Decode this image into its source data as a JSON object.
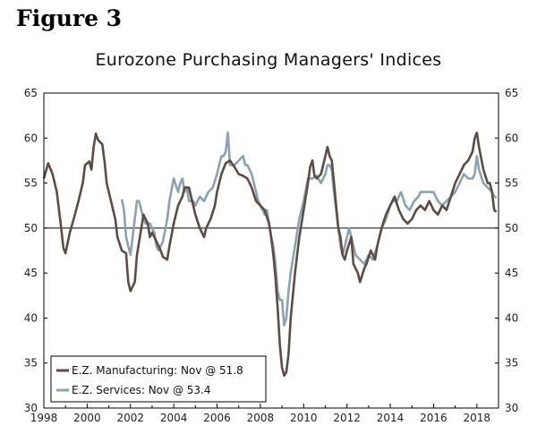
{
  "figure_label": "Figure 3",
  "chart_data": {
    "type": "line",
    "title": "Eurozone Purchasing Managers' Indices",
    "xlim": [
      1998,
      2019
    ],
    "ylim": [
      30,
      65
    ],
    "yticks": [
      30,
      35,
      40,
      45,
      50,
      55,
      60,
      65
    ],
    "xticks": [
      1998,
      2000,
      2002,
      2004,
      2006,
      2008,
      2010,
      2012,
      2014,
      2016,
      2018
    ],
    "x_tick_labels": [
      "1998",
      "2000",
      "2002",
      "2004",
      "2006",
      "2008",
      "2010",
      "2012",
      "2014",
      "2016",
      "2018"
    ],
    "y_tick_labels": [
      "30",
      "35",
      "40",
      "45",
      "50",
      "55",
      "60",
      "65"
    ],
    "reference_line": 50,
    "legend_position": "bottom-left",
    "series": [
      {
        "name": "E.Z. Manufacturing: Nov @ 51.8",
        "color": "#5e4c43",
        "points": [
          [
            1998.0,
            55.5
          ],
          [
            1998.2,
            57.2
          ],
          [
            1998.4,
            56
          ],
          [
            1998.6,
            54
          ],
          [
            1998.8,
            50
          ],
          [
            1998.9,
            47.8
          ],
          [
            1999.0,
            47.2
          ],
          [
            1999.2,
            49.5
          ],
          [
            1999.4,
            51.2
          ],
          [
            1999.6,
            53
          ],
          [
            1999.8,
            55
          ],
          [
            1999.9,
            57
          ],
          [
            2000.1,
            57.4
          ],
          [
            2000.2,
            56.5
          ],
          [
            2000.3,
            59
          ],
          [
            2000.4,
            60.5
          ],
          [
            2000.5,
            59.8
          ],
          [
            2000.7,
            59.3
          ],
          [
            2000.8,
            57.5
          ],
          [
            2000.9,
            55
          ],
          [
            2001.1,
            53
          ],
          [
            2001.3,
            51
          ],
          [
            2001.4,
            49
          ],
          [
            2001.6,
            47.5
          ],
          [
            2001.8,
            47.2
          ],
          [
            2001.9,
            44
          ],
          [
            2002.0,
            43
          ],
          [
            2002.2,
            44
          ],
          [
            2002.3,
            47
          ],
          [
            2002.5,
            50
          ],
          [
            2002.6,
            51.5
          ],
          [
            2002.8,
            50.5
          ],
          [
            2002.9,
            49
          ],
          [
            2003.0,
            49.5
          ],
          [
            2003.2,
            48.5
          ],
          [
            2003.4,
            47.5
          ],
          [
            2003.5,
            46.8
          ],
          [
            2003.7,
            46.5
          ],
          [
            2003.8,
            48
          ],
          [
            2004.0,
            50.5
          ],
          [
            2004.2,
            52.5
          ],
          [
            2004.4,
            53.5
          ],
          [
            2004.5,
            54.5
          ],
          [
            2004.7,
            54.5
          ],
          [
            2004.9,
            52.5
          ],
          [
            2005.0,
            51.5
          ],
          [
            2005.2,
            50
          ],
          [
            2005.4,
            49
          ],
          [
            2005.5,
            50
          ],
          [
            2005.7,
            51
          ],
          [
            2005.9,
            52.5
          ],
          [
            2006.0,
            54
          ],
          [
            2006.2,
            56
          ],
          [
            2006.4,
            57.2
          ],
          [
            2006.6,
            57.5
          ],
          [
            2006.8,
            56.8
          ],
          [
            2007.0,
            56
          ],
          [
            2007.2,
            55.8
          ],
          [
            2007.4,
            55.5
          ],
          [
            2007.6,
            54.5
          ],
          [
            2007.8,
            53
          ],
          [
            2008.0,
            52.5
          ],
          [
            2008.2,
            52
          ],
          [
            2008.4,
            50.5
          ],
          [
            2008.5,
            49
          ],
          [
            2008.6,
            47
          ],
          [
            2008.7,
            44.5
          ],
          [
            2008.8,
            41
          ],
          [
            2008.9,
            37
          ],
          [
            2009.0,
            34.5
          ],
          [
            2009.1,
            33.6
          ],
          [
            2009.2,
            34
          ],
          [
            2009.3,
            36
          ],
          [
            2009.4,
            40
          ],
          [
            2009.6,
            45
          ],
          [
            2009.8,
            49
          ],
          [
            2010.0,
            52
          ],
          [
            2010.2,
            55
          ],
          [
            2010.3,
            56.8
          ],
          [
            2010.4,
            57.5
          ],
          [
            2010.5,
            55.8
          ],
          [
            2010.6,
            55.5
          ],
          [
            2010.8,
            56
          ],
          [
            2010.9,
            57
          ],
          [
            2011.0,
            58
          ],
          [
            2011.1,
            59
          ],
          [
            2011.2,
            58
          ],
          [
            2011.3,
            57.5
          ],
          [
            2011.4,
            55
          ],
          [
            2011.5,
            52.5
          ],
          [
            2011.6,
            50
          ],
          [
            2011.7,
            49
          ],
          [
            2011.8,
            47
          ],
          [
            2011.9,
            46.5
          ],
          [
            2012.0,
            47.5
          ],
          [
            2012.2,
            49
          ],
          [
            2012.3,
            46
          ],
          [
            2012.5,
            45
          ],
          [
            2012.6,
            44
          ],
          [
            2012.8,
            45.5
          ],
          [
            2012.9,
            46
          ],
          [
            2013.1,
            47.5
          ],
          [
            2013.3,
            46.5
          ],
          [
            2013.4,
            48
          ],
          [
            2013.6,
            50
          ],
          [
            2013.8,
            51.5
          ],
          [
            2014.0,
            52.5
          ],
          [
            2014.2,
            53.5
          ],
          [
            2014.4,
            52
          ],
          [
            2014.6,
            51
          ],
          [
            2014.8,
            50.5
          ],
          [
            2015.0,
            51
          ],
          [
            2015.2,
            52
          ],
          [
            2015.4,
            52.5
          ],
          [
            2015.6,
            52
          ],
          [
            2015.8,
            53
          ],
          [
            2016.0,
            52
          ],
          [
            2016.2,
            51.5
          ],
          [
            2016.4,
            52.5
          ],
          [
            2016.6,
            52
          ],
          [
            2016.8,
            53.5
          ],
          [
            2017.0,
            55
          ],
          [
            2017.2,
            56
          ],
          [
            2017.4,
            57
          ],
          [
            2017.6,
            57.5
          ],
          [
            2017.8,
            58.5
          ],
          [
            2017.9,
            60
          ],
          [
            2018.0,
            60.6
          ],
          [
            2018.1,
            59
          ],
          [
            2018.3,
            56.5
          ],
          [
            2018.5,
            55
          ],
          [
            2018.6,
            55
          ],
          [
            2018.7,
            54
          ],
          [
            2018.8,
            52
          ],
          [
            2018.9,
            51.8
          ]
        ]
      },
      {
        "name": "E.Z. Services: Nov @ 53.4",
        "color": "#8aa2b4",
        "points": [
          [
            2001.6,
            53.2
          ],
          [
            2001.7,
            52
          ],
          [
            2001.8,
            49
          ],
          [
            2002.0,
            47
          ],
          [
            2002.1,
            49
          ],
          [
            2002.2,
            51
          ],
          [
            2002.3,
            53
          ],
          [
            2002.4,
            53
          ],
          [
            2002.5,
            52
          ],
          [
            2002.6,
            51
          ],
          [
            2002.7,
            50.5
          ],
          [
            2002.9,
            50.5
          ],
          [
            2003.1,
            49.5
          ],
          [
            2003.2,
            48
          ],
          [
            2003.3,
            47.5
          ],
          [
            2003.5,
            48.5
          ],
          [
            2003.7,
            51
          ],
          [
            2003.8,
            53
          ],
          [
            2004.0,
            55.5
          ],
          [
            2004.2,
            54
          ],
          [
            2004.3,
            55
          ],
          [
            2004.4,
            55.5
          ],
          [
            2004.5,
            54
          ],
          [
            2004.6,
            54.5
          ],
          [
            2004.7,
            53
          ],
          [
            2004.9,
            53
          ],
          [
            2005.0,
            52.5
          ],
          [
            2005.2,
            53.5
          ],
          [
            2005.4,
            53
          ],
          [
            2005.6,
            54
          ],
          [
            2005.8,
            54.5
          ],
          [
            2006.0,
            56
          ],
          [
            2006.2,
            58
          ],
          [
            2006.3,
            58
          ],
          [
            2006.4,
            58.5
          ],
          [
            2006.5,
            60.6
          ],
          [
            2006.6,
            57
          ],
          [
            2006.8,
            57
          ],
          [
            2007.0,
            57.5
          ],
          [
            2007.2,
            58
          ],
          [
            2007.3,
            57
          ],
          [
            2007.4,
            57
          ],
          [
            2007.6,
            56
          ],
          [
            2007.8,
            54
          ],
          [
            2007.9,
            53
          ],
          [
            2008.0,
            52.5
          ],
          [
            2008.2,
            51.5
          ],
          [
            2008.3,
            52
          ],
          [
            2008.4,
            50.5
          ],
          [
            2008.5,
            49
          ],
          [
            2008.6,
            48
          ],
          [
            2008.7,
            46
          ],
          [
            2008.8,
            43
          ],
          [
            2008.9,
            42
          ],
          [
            2009.0,
            42
          ],
          [
            2009.1,
            39.2
          ],
          [
            2009.2,
            40
          ],
          [
            2009.3,
            43
          ],
          [
            2009.4,
            45
          ],
          [
            2009.6,
            48
          ],
          [
            2009.8,
            51
          ],
          [
            2010.0,
            53
          ],
          [
            2010.2,
            55.5
          ],
          [
            2010.4,
            55.5
          ],
          [
            2010.6,
            55.8
          ],
          [
            2010.8,
            55
          ],
          [
            2010.9,
            55.5
          ],
          [
            2011.0,
            56
          ],
          [
            2011.1,
            57
          ],
          [
            2011.2,
            57
          ],
          [
            2011.3,
            56.5
          ],
          [
            2011.4,
            54
          ],
          [
            2011.5,
            52
          ],
          [
            2011.6,
            50
          ],
          [
            2011.7,
            48
          ],
          [
            2011.8,
            47
          ],
          [
            2012.0,
            49
          ],
          [
            2012.1,
            50
          ],
          [
            2012.3,
            48
          ],
          [
            2012.4,
            47
          ],
          [
            2012.6,
            46.5
          ],
          [
            2012.8,
            46
          ],
          [
            2013.0,
            47
          ],
          [
            2013.2,
            46.5
          ],
          [
            2013.4,
            48
          ],
          [
            2013.6,
            50
          ],
          [
            2013.8,
            51
          ],
          [
            2014.0,
            52.5
          ],
          [
            2014.1,
            53
          ],
          [
            2014.3,
            53
          ],
          [
            2014.5,
            54
          ],
          [
            2014.7,
            52.5
          ],
          [
            2014.9,
            52
          ],
          [
            2015.1,
            53
          ],
          [
            2015.3,
            53.5
          ],
          [
            2015.4,
            54
          ],
          [
            2015.6,
            54
          ],
          [
            2015.8,
            54
          ],
          [
            2016.0,
            54
          ],
          [
            2016.2,
            53
          ],
          [
            2016.4,
            52.5
          ],
          [
            2016.6,
            53
          ],
          [
            2016.8,
            53.5
          ],
          [
            2017.0,
            54
          ],
          [
            2017.2,
            55
          ],
          [
            2017.4,
            56
          ],
          [
            2017.6,
            55.5
          ],
          [
            2017.8,
            55.5
          ],
          [
            2017.9,
            56
          ],
          [
            2018.0,
            58
          ],
          [
            2018.1,
            56.5
          ],
          [
            2018.3,
            55
          ],
          [
            2018.5,
            54.5
          ],
          [
            2018.7,
            54
          ],
          [
            2018.8,
            53.5
          ],
          [
            2018.9,
            53.4
          ]
        ]
      }
    ]
  }
}
